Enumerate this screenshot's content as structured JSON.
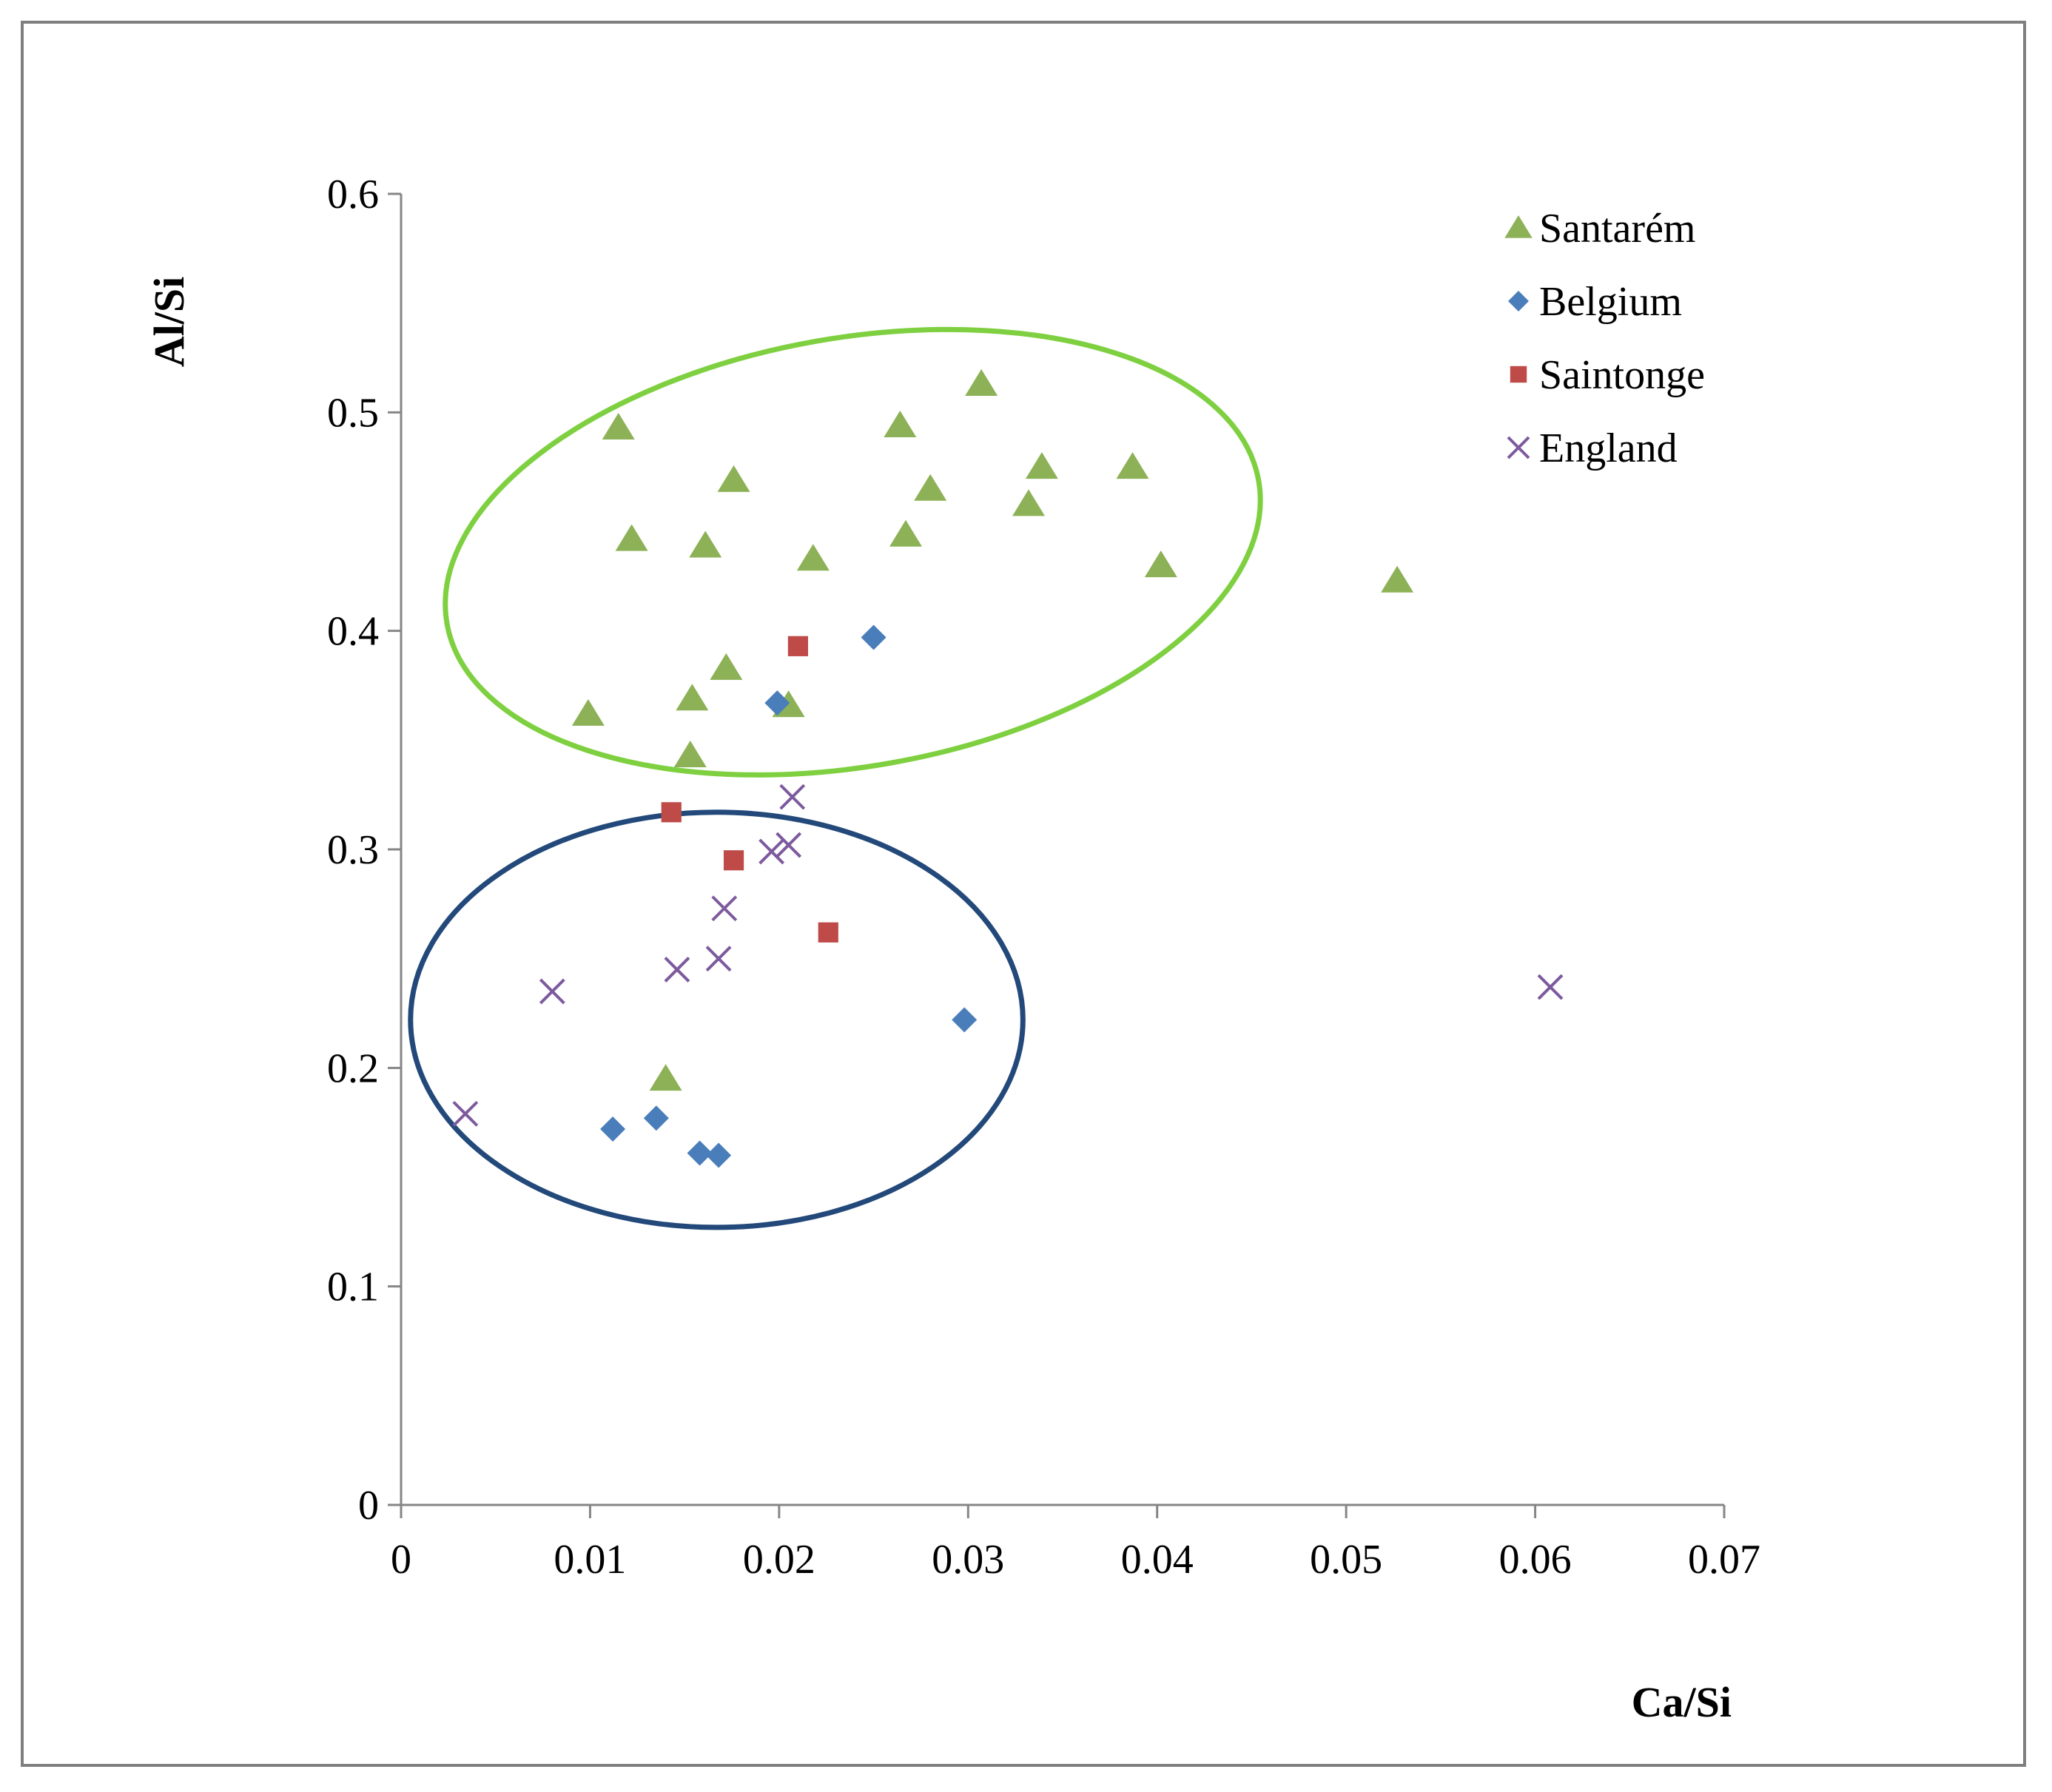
{
  "chart_data": {
    "type": "scatter",
    "title": "",
    "xlabel": "Ca/Si",
    "ylabel": "Al/Si",
    "xlim": [
      0,
      0.07
    ],
    "ylim": [
      0,
      0.6
    ],
    "xticks": [
      "0",
      "0.01",
      "0.02",
      "0.03",
      "0.04",
      "0.05",
      "0.06",
      "0.07"
    ],
    "yticks": [
      "0",
      "0.1",
      "0.2",
      "0.3",
      "0.4",
      "0.5",
      "0.6"
    ],
    "grid": false,
    "legend_position": "top-right",
    "series": [
      {
        "name": "Santarém",
        "marker": "triangle",
        "color": "#8db156",
        "points": [
          [
            0.0115,
            0.493
          ],
          [
            0.0122,
            0.442
          ],
          [
            0.0161,
            0.439
          ],
          [
            0.0176,
            0.469
          ],
          [
            0.0218,
            0.433
          ],
          [
            0.0264,
            0.494
          ],
          [
            0.0267,
            0.444
          ],
          [
            0.028,
            0.465
          ],
          [
            0.0307,
            0.513
          ],
          [
            0.0332,
            0.458
          ],
          [
            0.0339,
            0.475
          ],
          [
            0.0387,
            0.475
          ],
          [
            0.0402,
            0.43
          ],
          [
            0.0527,
            0.423
          ],
          [
            0.0099,
            0.362
          ],
          [
            0.0154,
            0.369
          ],
          [
            0.0172,
            0.383
          ],
          [
            0.0205,
            0.366
          ],
          [
            0.0153,
            0.343
          ],
          [
            0.014,
            0.195
          ]
        ]
      },
      {
        "name": "Belgium",
        "marker": "diamond",
        "color": "#4a7ebb",
        "points": [
          [
            0.025,
            0.397
          ],
          [
            0.0199,
            0.367
          ],
          [
            0.0298,
            0.222
          ],
          [
            0.0112,
            0.172
          ],
          [
            0.0135,
            0.177
          ],
          [
            0.0158,
            0.161
          ],
          [
            0.0168,
            0.16
          ]
        ]
      },
      {
        "name": "Saintonge",
        "marker": "square",
        "color": "#be4b48",
        "points": [
          [
            0.021,
            0.393
          ],
          [
            0.0143,
            0.317
          ],
          [
            0.0176,
            0.295
          ],
          [
            0.0226,
            0.262
          ]
        ]
      },
      {
        "name": "England",
        "marker": "x",
        "color": "#7d5a9e",
        "points": [
          [
            0.0207,
            0.324
          ],
          [
            0.0196,
            0.299
          ],
          [
            0.0205,
            0.302
          ],
          [
            0.0171,
            0.273
          ],
          [
            0.0146,
            0.245
          ],
          [
            0.0168,
            0.25
          ],
          [
            0.008,
            0.235
          ],
          [
            0.0034,
            0.179
          ],
          [
            0.0608,
            0.237
          ]
        ]
      }
    ],
    "annotations": [
      {
        "shape": "ellipse",
        "color": "#7ed040",
        "center": [
          0.0239,
          0.436
        ],
        "rx": 0.0218,
        "ry": 0.098,
        "rotation_deg": -10
      },
      {
        "shape": "ellipse",
        "color": "#23497a",
        "center": [
          0.0167,
          0.222
        ],
        "rx": 0.0162,
        "ry": 0.095,
        "rotation_deg": 0
      }
    ]
  }
}
